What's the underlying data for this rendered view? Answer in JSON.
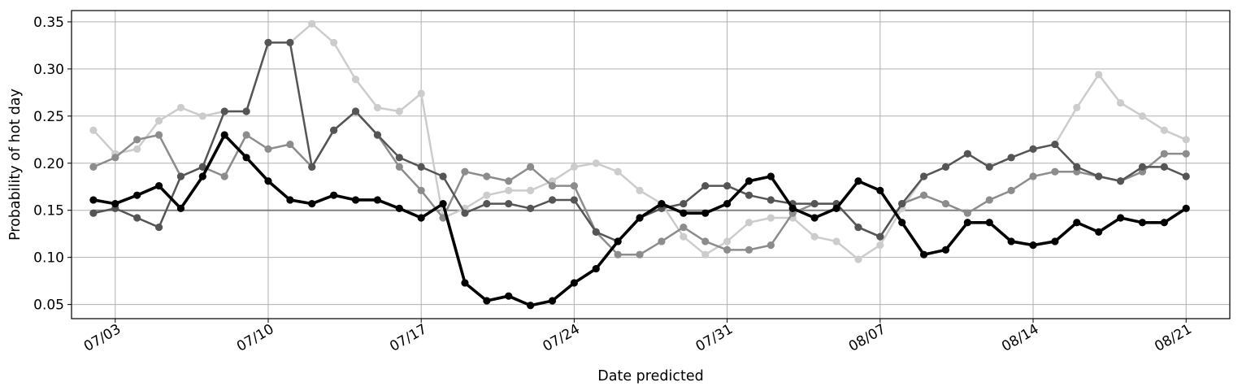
{
  "chart_data": {
    "type": "line",
    "xlabel": "Date predicted",
    "ylabel": "Probability of hot day",
    "x_start": "07/02",
    "x_end": "08/21",
    "xlim": [
      "07/01",
      "08/23"
    ],
    "ylim": [
      0.035,
      0.362
    ],
    "grid": true,
    "x_ticks": [
      "07/03",
      "07/10",
      "07/17",
      "07/24",
      "07/31",
      "08/07",
      "08/14",
      "08/21"
    ],
    "y_ticks": [
      0.05,
      0.1,
      0.15,
      0.2,
      0.25,
      0.3,
      0.35
    ],
    "y_tick_labels": [
      "0.05",
      "0.10",
      "0.15",
      "0.20",
      "0.25",
      "0.30",
      "0.35"
    ],
    "reference_line": {
      "y": 0.15,
      "color": "#808080"
    },
    "series": [
      {
        "color": "#cccccc",
        "values": [
          0.235,
          0.21,
          0.215,
          0.245,
          0.259,
          0.25,
          0.255,
          0.255,
          0.328,
          0.328,
          0.348,
          0.328,
          0.289,
          0.259,
          0.255,
          0.274,
          0.142,
          0.152,
          0.166,
          0.171,
          0.171,
          0.181,
          0.196,
          0.2,
          0.191,
          0.171,
          0.157,
          0.122,
          0.103,
          0.117,
          0.137,
          0.142,
          0.142,
          0.122,
          0.117,
          0.098,
          0.113,
          0.152,
          0.186,
          0.196,
          0.21,
          0.196,
          0.206,
          0.215,
          0.22,
          0.259,
          0.294,
          0.264,
          0.25,
          0.235,
          0.225
        ]
      },
      {
        "color": "#8c8c8c",
        "values": [
          0.196,
          0.206,
          0.225,
          0.23,
          0.186,
          0.196,
          0.186,
          0.23,
          0.215,
          0.22,
          0.196,
          0.235,
          0.255,
          0.23,
          0.196,
          0.171,
          0.142,
          0.191,
          0.186,
          0.181,
          0.196,
          0.176,
          0.176,
          0.127,
          0.103,
          0.103,
          0.117,
          0.132,
          0.117,
          0.108,
          0.108,
          0.113,
          0.147,
          0.157,
          0.157,
          0.132,
          0.122,
          0.157,
          0.166,
          0.157,
          0.147,
          0.161,
          0.171,
          0.186,
          0.191,
          0.191,
          0.186,
          0.181,
          0.191,
          0.21,
          0.21
        ]
      },
      {
        "color": "#555555",
        "values": [
          0.147,
          0.152,
          0.142,
          0.132,
          0.186,
          0.196,
          0.255,
          0.255,
          0.328,
          0.328,
          0.196,
          0.235,
          0.255,
          0.23,
          0.206,
          0.196,
          0.186,
          0.147,
          0.157,
          0.157,
          0.152,
          0.161,
          0.161,
          0.127,
          0.117,
          0.142,
          0.152,
          0.157,
          0.176,
          0.176,
          0.166,
          0.161,
          0.157,
          0.157,
          0.157,
          0.132,
          0.122,
          0.157,
          0.186,
          0.196,
          0.21,
          0.196,
          0.206,
          0.215,
          0.22,
          0.196,
          0.186,
          0.181,
          0.196,
          0.196,
          0.186
        ]
      },
      {
        "color": "#000000",
        "values": [
          0.161,
          0.157,
          0.166,
          0.176,
          0.152,
          0.186,
          0.23,
          0.206,
          0.181,
          0.161,
          0.157,
          0.166,
          0.161,
          0.161,
          0.152,
          0.142,
          0.157,
          0.073,
          0.054,
          0.059,
          0.049,
          0.054,
          0.073,
          0.088,
          0.117,
          0.142,
          0.157,
          0.147,
          0.147,
          0.157,
          0.181,
          0.186,
          0.152,
          0.142,
          0.152,
          0.181,
          0.171,
          0.137,
          0.103,
          0.108,
          0.137,
          0.137,
          0.117,
          0.113,
          0.117,
          0.137,
          0.127,
          0.142,
          0.137,
          0.137,
          0.152
        ]
      }
    ]
  }
}
